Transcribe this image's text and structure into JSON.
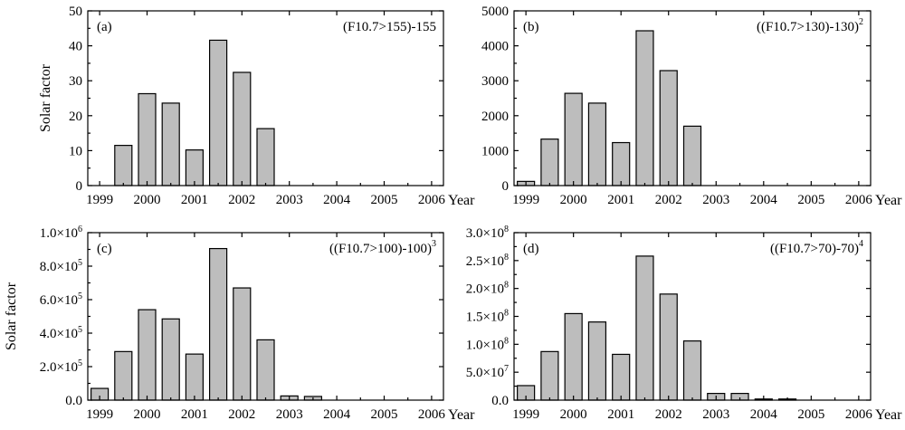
{
  "figure": {
    "y_axis_label": "Solar factor",
    "x_axis_suffix": "Year"
  },
  "chart_data": [
    {
      "panel": "(a)",
      "type": "bar",
      "formula": {
        "text": "(F10.7>155)-155",
        "exponent": ""
      },
      "ylabel": "Solar factor",
      "xlabel": "Year",
      "x_ticks": [
        "1999",
        "2000",
        "2001",
        "2002",
        "2003",
        "2004",
        "2005",
        "2006"
      ],
      "xlim": [
        1998.75,
        2006.25
      ],
      "ylim": [
        0,
        50
      ],
      "y_ticks": [
        0,
        10,
        20,
        30,
        40,
        50
      ],
      "y_tick_labels": [
        {
          "m": "0"
        },
        {
          "m": "10"
        },
        {
          "m": "20"
        },
        {
          "m": "30"
        },
        {
          "m": "40"
        },
        {
          "m": "50"
        }
      ],
      "x": [
        1999,
        1999.5,
        2000,
        2000.5,
        2001,
        2001.5,
        2002,
        2002.5,
        2003,
        2003.5,
        2004,
        2004.5,
        2005,
        2005.5,
        2006
      ],
      "values": [
        0,
        11.5,
        26.3,
        23.6,
        10.2,
        41.6,
        32.4,
        16.3,
        0,
        0,
        0,
        0,
        0,
        0,
        0
      ]
    },
    {
      "panel": "(b)",
      "type": "bar",
      "formula": {
        "text": "((F10.7>130)-130)",
        "exponent": "2"
      },
      "ylabel": "",
      "xlabel": "Year",
      "x_ticks": [
        "1999",
        "2000",
        "2001",
        "2002",
        "2003",
        "2004",
        "2005",
        "2006"
      ],
      "xlim": [
        1998.75,
        2006.25
      ],
      "ylim": [
        0,
        5000
      ],
      "y_ticks": [
        0,
        1000,
        2000,
        3000,
        4000,
        5000
      ],
      "y_tick_labels": [
        {
          "m": "0"
        },
        {
          "m": "1000"
        },
        {
          "m": "2000"
        },
        {
          "m": "3000"
        },
        {
          "m": "4000"
        },
        {
          "m": "5000"
        }
      ],
      "x": [
        1999,
        1999.5,
        2000,
        2000.5,
        2001,
        2001.5,
        2002,
        2002.5,
        2003,
        2003.5,
        2004,
        2004.5,
        2005,
        2005.5,
        2006
      ],
      "values": [
        120,
        1330,
        2640,
        2360,
        1230,
        4430,
        3290,
        1700,
        0,
        0,
        0,
        0,
        0,
        0,
        0
      ]
    },
    {
      "panel": "(c)",
      "type": "bar",
      "formula": {
        "text": "((F10.7>100)-100)",
        "exponent": "3"
      },
      "ylabel": "Solar factor",
      "xlabel": "Year",
      "x_ticks": [
        "1999",
        "2000",
        "2001",
        "2002",
        "2003",
        "2004",
        "2005",
        "2006"
      ],
      "xlim": [
        1998.75,
        2006.25
      ],
      "ylim": [
        0,
        1000000
      ],
      "y_ticks": [
        0,
        200000,
        400000,
        600000,
        800000,
        1000000
      ],
      "y_tick_labels": [
        {
          "m": "0.0"
        },
        {
          "m": "2.0×10",
          "e": "5"
        },
        {
          "m": "4.0×10",
          "e": "5"
        },
        {
          "m": "6.0×10",
          "e": "5"
        },
        {
          "m": "8.0×10",
          "e": "5"
        },
        {
          "m": "1.0×10",
          "e": "6"
        }
      ],
      "x": [
        1999,
        1999.5,
        2000,
        2000.5,
        2001,
        2001.5,
        2002,
        2002.5,
        2003,
        2003.5,
        2004,
        2004.5,
        2005,
        2005.5,
        2006
      ],
      "values": [
        70000,
        290000,
        540000,
        485000,
        275000,
        905000,
        670000,
        360000,
        25000,
        22000,
        0,
        0,
        0,
        0,
        0
      ]
    },
    {
      "panel": "(d)",
      "type": "bar",
      "formula": {
        "text": "((F10.7>70)-70)",
        "exponent": "4"
      },
      "ylabel": "",
      "xlabel": "Year",
      "x_ticks": [
        "1999",
        "2000",
        "2001",
        "2002",
        "2003",
        "2004",
        "2005",
        "2006"
      ],
      "xlim": [
        1998.75,
        2006.25
      ],
      "ylim": [
        0,
        300000000
      ],
      "y_ticks": [
        0,
        50000000,
        100000000,
        150000000,
        200000000,
        250000000,
        300000000
      ],
      "y_tick_labels": [
        {
          "m": "0.0"
        },
        {
          "m": "5.0×10",
          "e": "7"
        },
        {
          "m": "1.0×10",
          "e": "8"
        },
        {
          "m": "1.5×10",
          "e": "8"
        },
        {
          "m": "2.0×10",
          "e": "8"
        },
        {
          "m": "2.5×10",
          "e": "8"
        },
        {
          "m": "3.0×10",
          "e": "8"
        }
      ],
      "x": [
        1999,
        1999.5,
        2000,
        2000.5,
        2001,
        2001.5,
        2002,
        2002.5,
        2003,
        2003.5,
        2004,
        2004.5,
        2005,
        2005.5,
        2006
      ],
      "values": [
        26000000,
        87000000,
        155000000,
        140000000,
        82000000,
        258000000,
        190000000,
        106000000,
        12000000,
        12000000,
        2000000,
        2000000,
        0,
        0,
        0
      ]
    }
  ]
}
